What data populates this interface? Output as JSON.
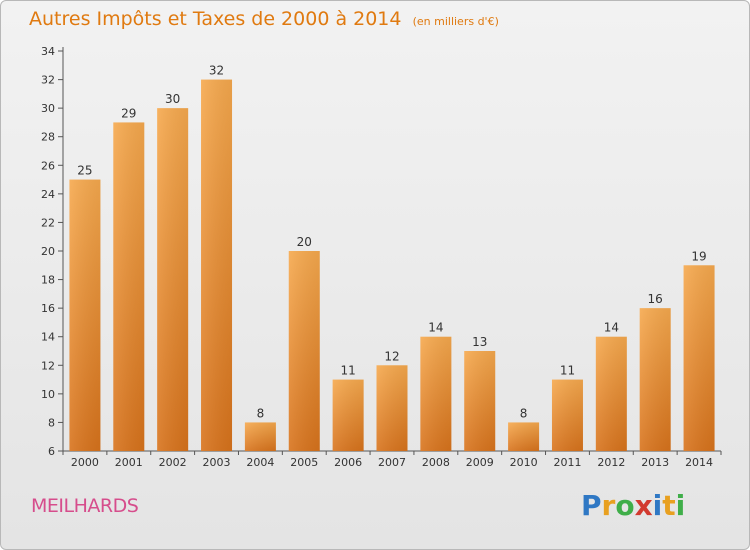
{
  "header": {
    "title": "Autres Impôts et Taxes de 2000 à 2014",
    "subtitle": "(en milliers d'€)"
  },
  "footer": {
    "commune": "MEILHARDS",
    "logo": {
      "text": "Proxiti",
      "letters": [
        "P",
        "r",
        "o",
        "x",
        "i",
        "t",
        "i"
      ],
      "colors": [
        "#2f78c4",
        "#e8a020",
        "#3fae49",
        "#d23a2f",
        "#2f78c4",
        "#e8a020",
        "#3fae49"
      ]
    }
  },
  "colors": {
    "accent": "#e07a10",
    "bar_light": "#f6a94e",
    "bar_dark": "#d8731c",
    "commune": "#d64d8c"
  },
  "chart_data": {
    "type": "bar",
    "title": "Autres Impôts et Taxes de 2000 à 2014",
    "subtitle": "(en milliers d'€)",
    "xlabel": "",
    "ylabel": "",
    "categories": [
      "2000",
      "2001",
      "2002",
      "2003",
      "2004",
      "2005",
      "2006",
      "2007",
      "2008",
      "2009",
      "2010",
      "2011",
      "2012",
      "2013",
      "2014"
    ],
    "values": [
      25,
      29,
      30,
      32,
      8,
      20,
      11,
      12,
      14,
      13,
      8,
      11,
      14,
      16,
      19
    ],
    "ylim": [
      6,
      34
    ],
    "yticks": [
      6,
      8,
      10,
      12,
      14,
      16,
      18,
      20,
      22,
      24,
      26,
      28,
      30,
      32,
      34
    ],
    "grid": false,
    "data_labels": true
  }
}
